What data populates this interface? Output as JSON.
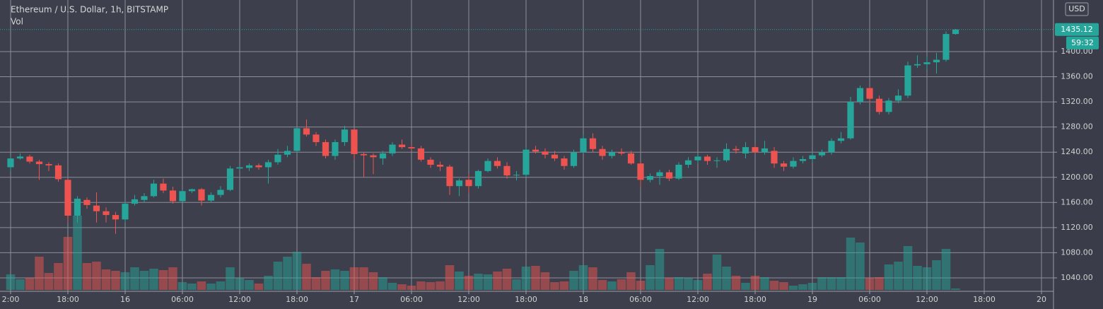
{
  "chart_data": {
    "type": "candlestick",
    "title": "Ethereum / U.S. Dollar, 1h, BITSTAMP",
    "volume_label": "Vol",
    "currency": "USD",
    "last_price": 1435.12,
    "countdown": "59:32",
    "grid": true,
    "colors": {
      "up": "#26a69a",
      "down": "#ef5350"
    },
    "xlim": [
      -1.11,
      109.26
    ],
    "xticks": [
      {
        "value": 0,
        "label": "2:00"
      },
      {
        "value": 6,
        "label": "18:00"
      },
      {
        "value": 12,
        "label": "16"
      },
      {
        "value": 18,
        "label": "06:00"
      },
      {
        "value": 24,
        "label": "12:00"
      },
      {
        "value": 30,
        "label": "18:00"
      },
      {
        "value": 36,
        "label": "17"
      },
      {
        "value": 42,
        "label": "06:00"
      },
      {
        "value": 48,
        "label": "12:00"
      },
      {
        "value": 54,
        "label": "18:00"
      },
      {
        "value": 60,
        "label": "18"
      },
      {
        "value": 66,
        "label": "06:00"
      },
      {
        "value": 72,
        "label": "12:00"
      },
      {
        "value": 78,
        "label": "18:00"
      },
      {
        "value": 84,
        "label": "19"
      },
      {
        "value": 90,
        "label": "06:00"
      },
      {
        "value": 96,
        "label": "12:00"
      },
      {
        "value": 102,
        "label": "18:00"
      },
      {
        "value": 108,
        "label": "20"
      }
    ],
    "ylim": [
      1018.6,
      1482.1
    ],
    "yticks": [
      {
        "value": 1040,
        "label": "1040.00"
      },
      {
        "value": 1080,
        "label": "1080.00"
      },
      {
        "value": 1120,
        "label": "1120.00"
      },
      {
        "value": 1160,
        "label": "1160.00"
      },
      {
        "value": 1200,
        "label": "1200.00"
      },
      {
        "value": 1240,
        "label": "1240.00"
      },
      {
        "value": 1280,
        "label": "1280.00"
      },
      {
        "value": 1320,
        "label": "1320.00"
      },
      {
        "value": 1360,
        "label": "1360.00"
      },
      {
        "value": 1400,
        "label": "1400.00"
      }
    ],
    "open": [
      1216,
      1230,
      1233,
      1225,
      1221,
      1219,
      1196,
      1139,
      1164,
      1155,
      1146,
      1140,
      1133,
      1158,
      1164,
      1170,
      1190,
      1179,
      1162,
      1178,
      1181,
      1163,
      1172,
      1180,
      1214,
      1215,
      1219,
      1216,
      1224,
      1236,
      1242,
      1278,
      1268,
      1256,
      1234,
      1256,
      1276,
      1237,
      1235,
      1230,
      1238,
      1252,
      1248,
      1246,
      1228,
      1220,
      1217,
      1186,
      1196,
      1186,
      1210,
      1226,
      1218,
      1203,
      1204,
      1244,
      1241,
      1236,
      1230,
      1218,
      1240,
      1262,
      1245,
      1234,
      1240,
      1238,
      1222,
      1196,
      1202,
      1208,
      1198,
      1220,
      1227,
      1233,
      1226,
      1227,
      1245,
      1238,
      1248,
      1240,
      1242,
      1222,
      1217,
      1226,
      1229,
      1235,
      1240,
      1258,
      1262,
      1320,
      1342,
      1325,
      1304,
      1322,
      1330,
      1378,
      1380,
      1383,
      1387,
      1428
    ],
    "high": [
      1234,
      1238,
      1236,
      1228,
      1224,
      1222,
      1198,
      1170,
      1168,
      1176,
      1152,
      1145,
      1162,
      1172,
      1175,
      1196,
      1198,
      1185,
      1180,
      1182,
      1183,
      1176,
      1186,
      1218,
      1218,
      1222,
      1222,
      1228,
      1245,
      1250,
      1280,
      1292,
      1272,
      1260,
      1260,
      1282,
      1278,
      1240,
      1238,
      1242,
      1256,
      1260,
      1252,
      1250,
      1232,
      1225,
      1220,
      1198,
      1205,
      1212,
      1230,
      1232,
      1224,
      1210,
      1248,
      1250,
      1246,
      1242,
      1234,
      1244,
      1268,
      1270,
      1250,
      1244,
      1246,
      1242,
      1224,
      1206,
      1212,
      1212,
      1224,
      1232,
      1238,
      1236,
      1232,
      1254,
      1250,
      1256,
      1252,
      1258,
      1248,
      1226,
      1232,
      1234,
      1240,
      1244,
      1262,
      1272,
      1328,
      1346,
      1344,
      1330,
      1326,
      1340,
      1384,
      1394,
      1392,
      1398,
      1432,
      1436
    ],
    "low": [
      1210,
      1228,
      1222,
      1196,
      1210,
      1193,
      1128,
      1128,
      1150,
      1128,
      1128,
      1110,
      1128,
      1155,
      1160,
      1168,
      1175,
      1158,
      1160,
      1175,
      1155,
      1160,
      1168,
      1178,
      1211,
      1210,
      1212,
      1190,
      1220,
      1232,
      1238,
      1265,
      1250,
      1230,
      1228,
      1250,
      1228,
      1200,
      1205,
      1220,
      1234,
      1245,
      1242,
      1225,
      1215,
      1210,
      1172,
      1170,
      1175,
      1182,
      1208,
      1214,
      1198,
      1195,
      1200,
      1238,
      1230,
      1226,
      1212,
      1215,
      1238,
      1240,
      1228,
      1230,
      1235,
      1220,
      1185,
      1192,
      1188,
      1194,
      1196,
      1215,
      1222,
      1220,
      1215,
      1224,
      1238,
      1230,
      1238,
      1236,
      1215,
      1210,
      1214,
      1222,
      1224,
      1232,
      1236,
      1254,
      1260,
      1316,
      1318,
      1300,
      1300,
      1318,
      1326,
      1374,
      1372,
      1365,
      1384,
      1427
    ],
    "close": [
      1230,
      1233,
      1225,
      1221,
      1219,
      1197,
      1139,
      1166,
      1156,
      1146,
      1140,
      1133,
      1158,
      1165,
      1170,
      1190,
      1179,
      1162,
      1178,
      1181,
      1163,
      1172,
      1180,
      1214,
      1216,
      1219,
      1216,
      1224,
      1236,
      1242,
      1278,
      1268,
      1256,
      1234,
      1256,
      1276,
      1237,
      1235,
      1232,
      1238,
      1252,
      1248,
      1246,
      1228,
      1220,
      1217,
      1186,
      1195,
      1186,
      1210,
      1226,
      1218,
      1203,
      1204,
      1244,
      1241,
      1236,
      1230,
      1218,
      1240,
      1262,
      1245,
      1234,
      1240,
      1238,
      1222,
      1196,
      1202,
      1208,
      1198,
      1220,
      1227,
      1233,
      1226,
      1227,
      1245,
      1243,
      1248,
      1240,
      1246,
      1222,
      1217,
      1226,
      1229,
      1235,
      1240,
      1258,
      1262,
      1320,
      1342,
      1325,
      1304,
      1322,
      1330,
      1378,
      1380,
      1383,
      1387,
      1428,
      1435.12
    ],
    "volume": [
      22,
      15,
      17,
      47,
      24,
      38,
      75,
      105,
      38,
      40,
      29,
      27,
      25,
      32,
      27,
      30,
      28,
      32,
      11,
      9,
      12,
      9,
      12,
      32,
      17,
      14,
      9,
      20,
      40,
      47,
      54,
      37,
      18,
      27,
      29,
      27,
      32,
      32,
      25,
      18,
      10,
      8,
      6,
      12,
      11,
      12,
      35,
      26,
      20,
      23,
      22,
      26,
      30,
      15,
      33,
      34,
      25,
      11,
      12,
      27,
      35,
      32,
      14,
      12,
      15,
      25,
      13,
      35,
      58,
      17,
      18,
      17,
      14,
      23,
      50,
      33,
      20,
      10,
      20,
      18,
      13,
      11,
      6,
      8,
      10,
      18,
      18,
      18,
      74,
      67,
      17,
      18,
      36,
      40,
      62,
      34,
      32,
      42,
      58,
      2
    ]
  }
}
